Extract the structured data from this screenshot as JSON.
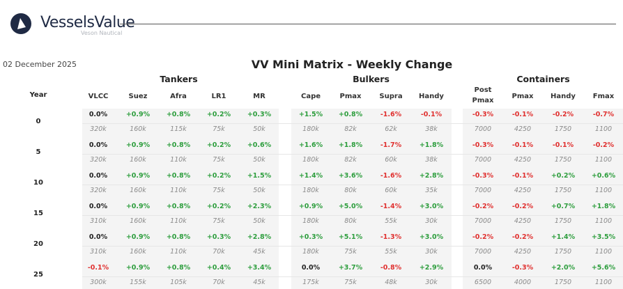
{
  "header": {
    "brand": "VesselsValue",
    "subbrand": "Veson Nautical"
  },
  "date": "02 December 2025",
  "title": "VV Mini Matrix - Weekly Change",
  "table": {
    "year_header": "Year",
    "groups": [
      {
        "label": "Tankers",
        "columns": [
          "VLCC",
          "Suez",
          "Afra",
          "LR1",
          "MR"
        ]
      },
      {
        "label": "Bulkers",
        "columns": [
          "Cape",
          "Pmax",
          "Supra",
          "Handy"
        ]
      },
      {
        "label": "Containers",
        "columns": [
          "Post Pmax",
          "Pmax",
          "Handy",
          "Fmax"
        ]
      }
    ],
    "rows": [
      {
        "year": "0",
        "changes": [
          "0.0%",
          "+0.9%",
          "+0.8%",
          "+0.2%",
          "+0.3%",
          "+1.5%",
          "+0.8%",
          "-1.6%",
          "-0.1%",
          "-0.3%",
          "-0.1%",
          "-0.2%",
          "-0.7%"
        ],
        "values": [
          "320k",
          "160k",
          "115k",
          "75k",
          "50k",
          "180k",
          "82k",
          "62k",
          "38k",
          "7000",
          "4250",
          "1750",
          "1100"
        ]
      },
      {
        "year": "5",
        "changes": [
          "0.0%",
          "+0.9%",
          "+0.8%",
          "+0.2%",
          "+0.6%",
          "+1.6%",
          "+1.8%",
          "-1.7%",
          "+1.8%",
          "-0.3%",
          "-0.1%",
          "-0.1%",
          "-0.2%"
        ],
        "values": [
          "320k",
          "160k",
          "110k",
          "75k",
          "50k",
          "180k",
          "82k",
          "60k",
          "38k",
          "7000",
          "4250",
          "1750",
          "1100"
        ]
      },
      {
        "year": "10",
        "changes": [
          "0.0%",
          "+0.9%",
          "+0.8%",
          "+0.2%",
          "+1.5%",
          "+1.4%",
          "+3.6%",
          "-1.6%",
          "+2.8%",
          "-0.3%",
          "-0.1%",
          "+0.2%",
          "+0.6%"
        ],
        "values": [
          "320k",
          "160k",
          "110k",
          "75k",
          "50k",
          "180k",
          "80k",
          "60k",
          "35k",
          "7000",
          "4250",
          "1750",
          "1100"
        ]
      },
      {
        "year": "15",
        "changes": [
          "0.0%",
          "+0.9%",
          "+0.8%",
          "+0.2%",
          "+2.3%",
          "+0.9%",
          "+5.0%",
          "-1.4%",
          "+3.0%",
          "-0.2%",
          "-0.2%",
          "+0.7%",
          "+1.8%"
        ],
        "values": [
          "310k",
          "160k",
          "110k",
          "75k",
          "50k",
          "180k",
          "80k",
          "55k",
          "30k",
          "7000",
          "4250",
          "1750",
          "1100"
        ]
      },
      {
        "year": "20",
        "changes": [
          "0.0%",
          "+0.9%",
          "+0.8%",
          "+0.3%",
          "+2.8%",
          "+0.3%",
          "+5.1%",
          "-1.3%",
          "+3.0%",
          "-0.2%",
          "-0.2%",
          "+1.4%",
          "+3.5%"
        ],
        "values": [
          "310k",
          "160k",
          "110k",
          "70k",
          "45k",
          "180k",
          "75k",
          "55k",
          "30k",
          "7000",
          "4250",
          "1750",
          "1100"
        ]
      },
      {
        "year": "25",
        "changes": [
          "-0.1%",
          "+0.9%",
          "+0.8%",
          "+0.4%",
          "+3.4%",
          "0.0%",
          "+3.7%",
          "-0.8%",
          "+2.9%",
          "0.0%",
          "-0.3%",
          "+2.0%",
          "+5.6%"
        ],
        "values": [
          "300k",
          "155k",
          "105k",
          "70k",
          "45k",
          "175k",
          "75k",
          "48k",
          "30k",
          "6500",
          "4000",
          "1750",
          "1100"
        ]
      }
    ]
  }
}
